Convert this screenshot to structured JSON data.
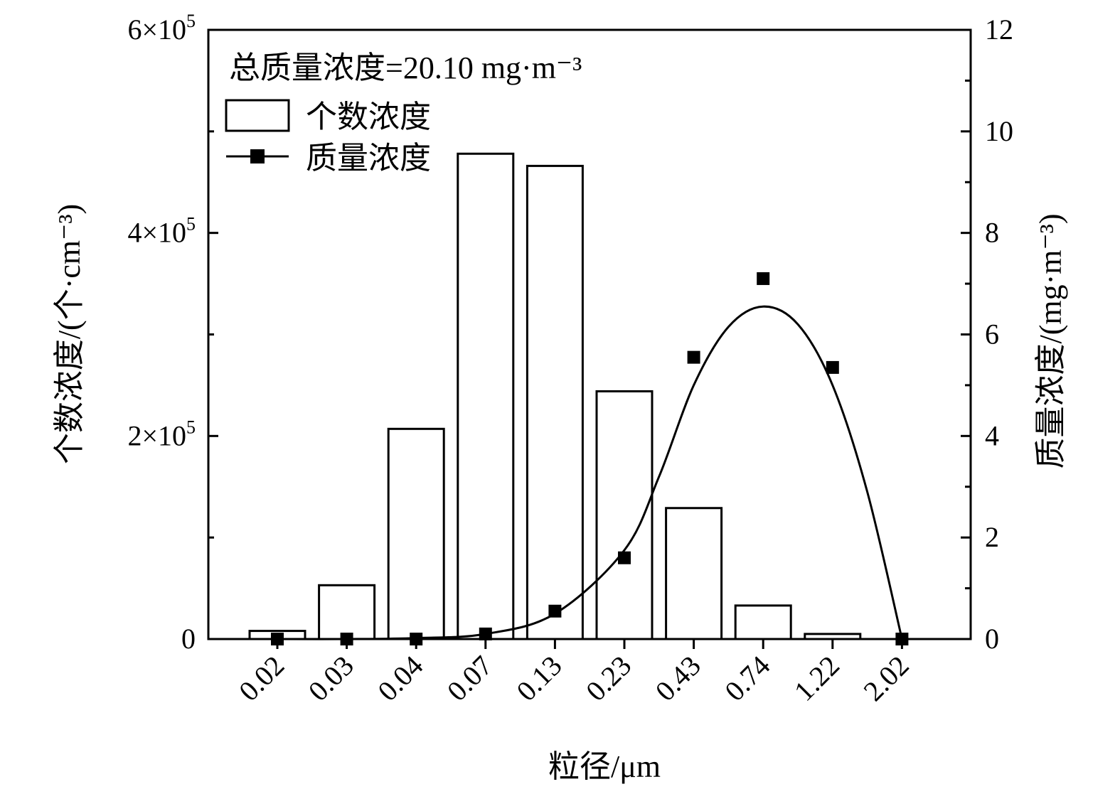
{
  "chart_data": {
    "type": "bar",
    "annotation": "总质量浓度=20.10 mg·m⁻³",
    "xlabel": "粒径/μm",
    "ylabel_left": "个数浓度/(个·cm⁻³)",
    "ylabel_right": "质量浓度/(mg·m⁻³)",
    "categories": [
      "0.02",
      "0.03",
      "0.04",
      "0.07",
      "0.13",
      "0.23",
      "0.43",
      "0.74",
      "1.22",
      "2.02"
    ],
    "ylim_left": [
      0,
      600000
    ],
    "ylim_right": [
      0,
      12
    ],
    "yticks_left": [
      {
        "value": 0,
        "label": "0",
        "exp": ""
      },
      {
        "value": 200000,
        "label": "2×10",
        "exp": "5"
      },
      {
        "value": 400000,
        "label": "4×10",
        "exp": "5"
      },
      {
        "value": 600000,
        "label": "6×10",
        "exp": "5"
      }
    ],
    "yticks_right": [
      0,
      2,
      4,
      6,
      8,
      10,
      12
    ],
    "legend_position": "top-left",
    "series": [
      {
        "name": "个数浓度",
        "kind": "bar",
        "axis": "left",
        "values": [
          8000,
          53000,
          207000,
          478000,
          466000,
          244000,
          129000,
          33000,
          5000,
          0
        ]
      },
      {
        "name": "质量浓度",
        "kind": "scatter",
        "axis": "right",
        "values": [
          0,
          0,
          0,
          0.1,
          0.55,
          1.6,
          5.55,
          7.1,
          5.35,
          0
        ]
      }
    ],
    "fit_curve": {
      "axis": "right",
      "points": [
        [
          0,
          0
        ],
        [
          1,
          0
        ],
        [
          2,
          0.02
        ],
        [
          3,
          0.1
        ],
        [
          4,
          0.5
        ],
        [
          5,
          1.75
        ],
        [
          5.5,
          3.2
        ],
        [
          6,
          5.0
        ],
        [
          6.5,
          6.15
        ],
        [
          7,
          6.55
        ],
        [
          7.5,
          6.2
        ],
        [
          8,
          5.0
        ],
        [
          8.5,
          2.9
        ],
        [
          9,
          0
        ]
      ]
    }
  }
}
